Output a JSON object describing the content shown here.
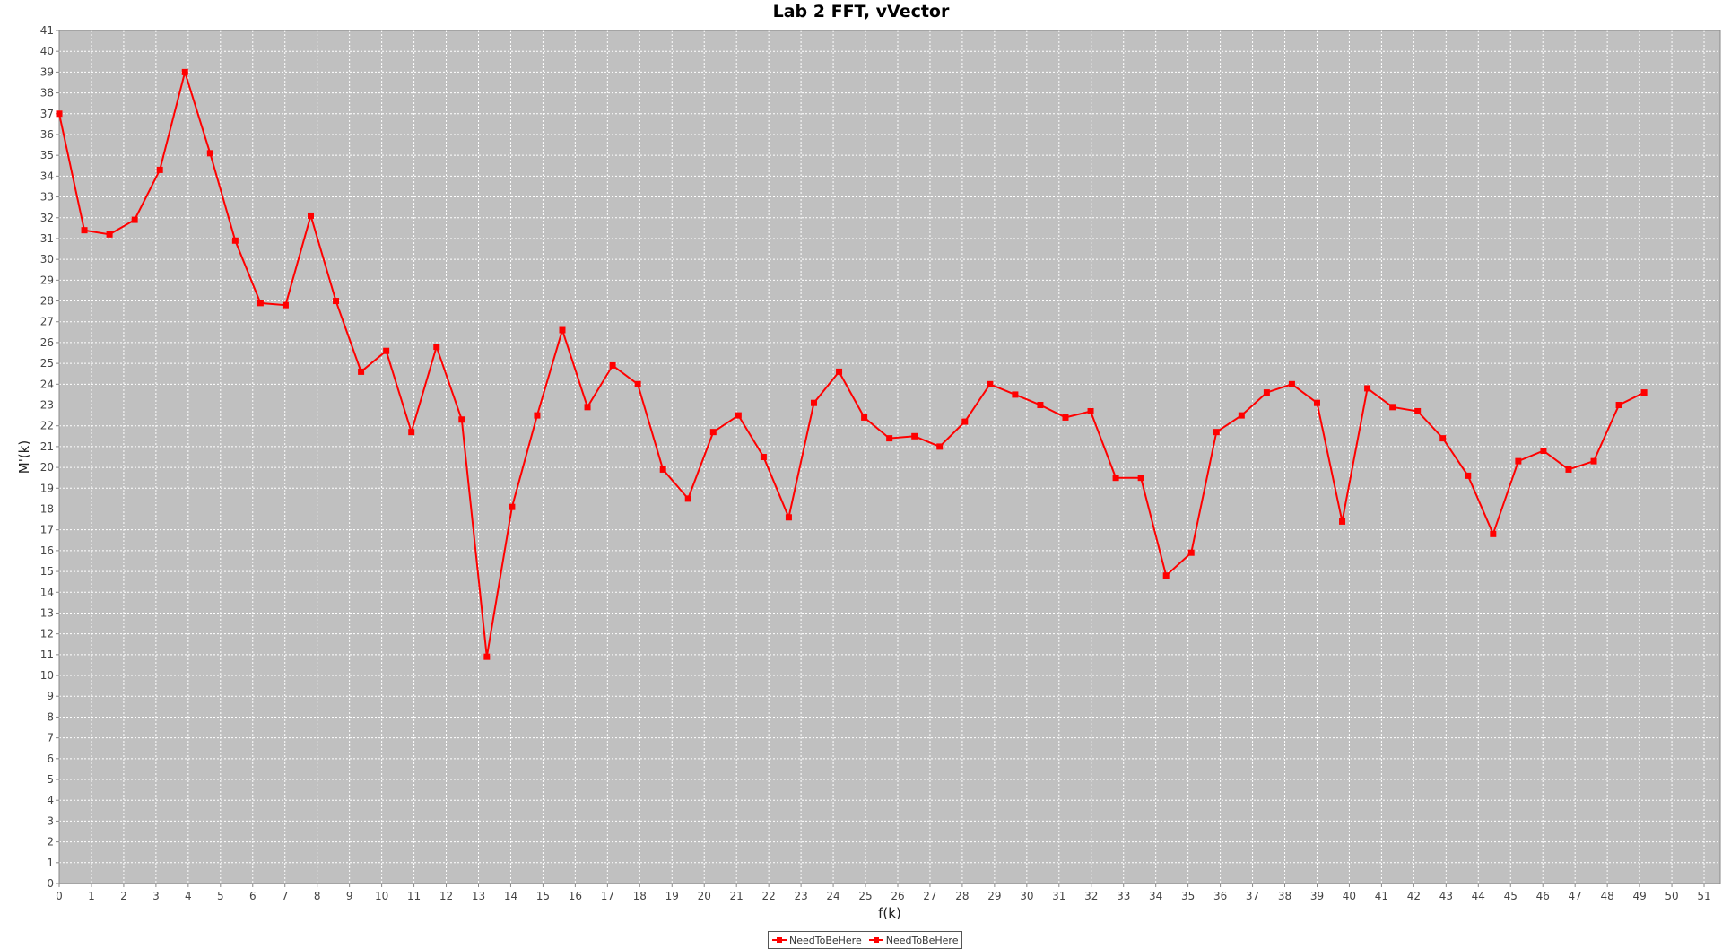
{
  "chart_data": {
    "type": "line",
    "title": "Lab 2 FFT, vVector",
    "xlabel": "f(k)",
    "ylabel": "M'(k)",
    "xlim": [
      0,
      51.5
    ],
    "ylim": [
      0,
      41
    ],
    "x_ticks": [
      0,
      1,
      2,
      3,
      4,
      5,
      6,
      7,
      8,
      9,
      10,
      11,
      12,
      13,
      14,
      15,
      16,
      17,
      18,
      19,
      20,
      21,
      22,
      23,
      24,
      25,
      26,
      27,
      28,
      29,
      30,
      31,
      32,
      33,
      34,
      35,
      36,
      37,
      38,
      39,
      40,
      41,
      42,
      43,
      44,
      45,
      46,
      47,
      48,
      49,
      50,
      51
    ],
    "y_ticks": [
      0,
      1,
      2,
      3,
      4,
      5,
      6,
      7,
      8,
      9,
      10,
      11,
      12,
      13,
      14,
      15,
      16,
      17,
      18,
      19,
      20,
      21,
      22,
      23,
      24,
      25,
      26,
      27,
      28,
      29,
      30,
      31,
      32,
      33,
      34,
      35,
      36,
      37,
      38,
      39,
      40,
      41
    ],
    "grid": true,
    "background_color": "#c0c0c0",
    "line_color": "#ff0000",
    "legend_position": "bottom",
    "series": [
      {
        "name": "NeedToBeHere",
        "x": [
          0,
          0.78,
          1.56,
          2.34,
          3.12,
          3.9,
          4.68,
          5.46,
          6.24,
          7.02,
          7.8,
          8.58,
          9.36,
          10.14,
          10.92,
          11.7,
          12.48,
          13.26,
          14.04,
          14.82,
          15.6,
          16.38,
          17.16,
          17.94,
          18.72,
          19.5,
          20.28,
          21.06,
          21.84,
          22.62,
          23.4,
          24.18,
          24.96,
          25.74,
          26.52,
          27.3,
          28.08,
          28.86,
          29.64,
          30.42,
          31.2,
          31.98,
          32.76,
          33.54,
          34.32,
          35.1,
          35.88,
          36.66,
          37.44,
          38.22,
          39,
          39.78,
          40.56,
          41.34,
          42.12,
          42.9,
          43.68,
          44.46,
          45.24,
          46.02,
          46.8,
          47.58,
          48.36,
          49.14
        ],
        "values": [
          37.0,
          31.4,
          31.2,
          31.9,
          34.3,
          39.0,
          35.1,
          30.9,
          27.9,
          27.8,
          32.1,
          28.0,
          24.6,
          25.6,
          21.7,
          25.8,
          22.3,
          10.9,
          18.1,
          22.5,
          26.6,
          22.9,
          24.9,
          24.0,
          19.9,
          18.5,
          21.7,
          22.5,
          20.5,
          17.6,
          23.1,
          24.6,
          22.4,
          21.4,
          21.5,
          21.0,
          22.2,
          24.0,
          23.5,
          23.0,
          22.4,
          22.7,
          19.5,
          19.5,
          14.8,
          15.9,
          21.7,
          22.5,
          23.6,
          24.0,
          23.1,
          17.4,
          23.8,
          22.9,
          22.7,
          21.4,
          19.6,
          16.8,
          20.3,
          20.8,
          19.9,
          20.3,
          23.0,
          23.6
        ]
      },
      {
        "name": "NeedToBeHere"
      }
    ]
  }
}
